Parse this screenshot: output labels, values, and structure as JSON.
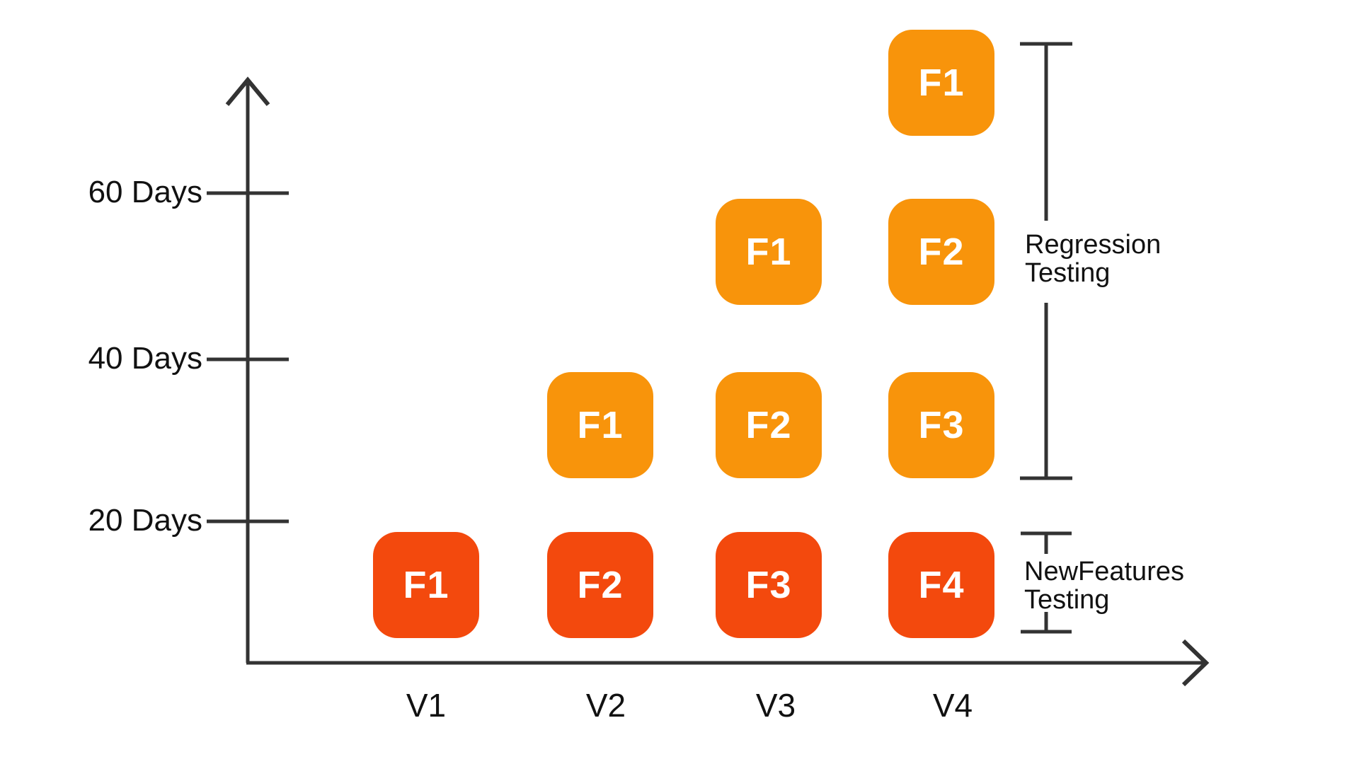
{
  "colors": {
    "regression_box": "#F8940B",
    "new_features_box": "#F3490D",
    "line": "#333333",
    "text": "#111111",
    "box_label": "#FFFFFF"
  },
  "y_axis": {
    "tick_labels": [
      "60 Days",
      "40 Days",
      "20 Days"
    ]
  },
  "x_axis": {
    "labels": [
      "V1",
      "V2",
      "V3",
      "V4"
    ]
  },
  "annotations": {
    "regression": {
      "line1": "Regression",
      "line2": "Testing"
    },
    "new_features": {
      "line1": "NewFeatures",
      "line2": "Testing"
    }
  },
  "chart_data": {
    "type": "matrix",
    "x_categories": [
      "V1",
      "V2",
      "V3",
      "V4"
    ],
    "y_tick_labels": [
      "20 Days",
      "40 Days",
      "60 Days"
    ],
    "boxes": [
      {
        "version": "V1",
        "level": 1,
        "label": "F1",
        "group": "new_features"
      },
      {
        "version": "V2",
        "level": 1,
        "label": "F2",
        "group": "new_features"
      },
      {
        "version": "V2",
        "level": 2,
        "label": "F1",
        "group": "regression"
      },
      {
        "version": "V3",
        "level": 1,
        "label": "F3",
        "group": "new_features"
      },
      {
        "version": "V3",
        "level": 2,
        "label": "F2",
        "group": "regression"
      },
      {
        "version": "V3",
        "level": 3,
        "label": "F1",
        "group": "regression"
      },
      {
        "version": "V4",
        "level": 1,
        "label": "F4",
        "group": "new_features"
      },
      {
        "version": "V4",
        "level": 2,
        "label": "F3",
        "group": "regression"
      },
      {
        "version": "V4",
        "level": 3,
        "label": "F2",
        "group": "regression"
      },
      {
        "version": "V4",
        "level": 4,
        "label": "F1",
        "group": "regression"
      }
    ],
    "bracket_groups": [
      {
        "name": "Regression Testing",
        "levels": [
          2,
          3,
          4
        ]
      },
      {
        "name": "NewFeatures Testing",
        "levels": [
          1
        ]
      }
    ]
  }
}
